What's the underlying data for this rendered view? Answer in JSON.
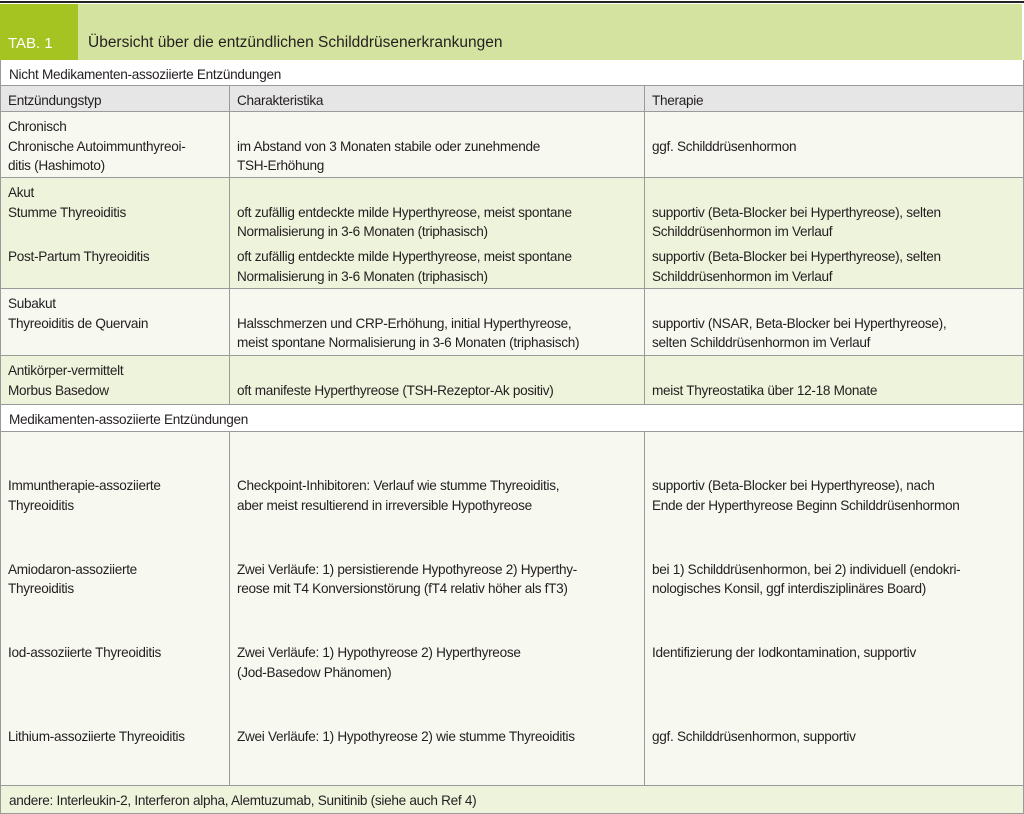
{
  "header": {
    "tab_label": "TAB. 1",
    "title": "Übersicht über die entzündlichen Schilddrüsenerkrankungen"
  },
  "colors": {
    "tab_green": "#a5c422",
    "header_green": "#d5e3a0",
    "row_green": "#eef3dc",
    "row_light": "#f7f8f0",
    "column_header_gray": "#e6e6e6"
  },
  "sections": {
    "non_drug": "Nicht Medikamenten-assoziierte Entzündungen",
    "drug": "Medikamenten-assoziierte Entzündungen"
  },
  "columns": [
    "Entzündungstyp",
    "Charakteristika",
    "Therapie"
  ],
  "groups": {
    "chronisch": {
      "label": "Chronisch",
      "type": "Chronische Autoimmunthyreoi-\nditis (Hashimoto)",
      "char": "im Abstand von 3 Monaten stabile oder zunehmende\nTSH-Erhöhung",
      "therapy": "ggf. Schilddrüsenhormon"
    },
    "akut": {
      "label": "Akut",
      "items": [
        {
          "type": "Stumme Thyreoiditis",
          "char": "oft zufällig entdeckte milde Hyperthyreose, meist spontane\nNormalisierung in 3-6 Monaten (triphasisch)",
          "therapy": "supportiv (Beta-Blocker bei Hyperthyreose), selten\nSchilddrüsenhormon im Verlauf"
        },
        {
          "type": "Post-Partum Thyreoiditis",
          "char": "oft zufällig entdeckte milde Hyperthyreose, meist spontane\nNormalisierung in 3-6 Monaten (triphasisch)",
          "therapy": "supportiv (Beta-Blocker bei Hyperthyreose), selten\nSchilddrüsenhormon im Verlauf"
        }
      ]
    },
    "subakut": {
      "label": "Subakut",
      "type": "Thyreoiditis de Quervain",
      "char": "Halsschmerzen und CRP-Erhöhung, initial Hyperthyreose,\nmeist spontane Normalisierung in 3-6 Monaten (triphasisch)",
      "therapy": "supportiv (NSAR, Beta-Blocker bei Hyperthyreose),\nselten Schilddrüsenhormon im Verlauf"
    },
    "antikoerper": {
      "label": "Antikörper-vermittelt",
      "type": "Morbus Basedow",
      "char": "oft manifeste Hyperthyreose (TSH-Rezeptor-Ak positiv)",
      "therapy": "meist Thyreostatika über 12-18 Monate"
    }
  },
  "drug_rows": [
    {
      "type": "Immuntherapie-assoziierte\nThyreoiditis",
      "char": "Checkpoint-Inhibitoren: Verlauf wie stumme Thyreoiditis,\naber meist resultierend in irreversible Hypothyreose",
      "therapy": "supportiv (Beta-Blocker bei Hyperthyreose), nach\nEnde der Hyperthyreose Beginn Schilddrüsenhormon"
    },
    {
      "type": "Amiodaron-assoziierte\nThyreoiditis",
      "char": "Zwei Verläufe: 1) persistierende Hypothyreose 2) Hyperthy-\nreose mit T4 Konversionstörung (fT4 relativ höher als fT3)",
      "therapy": "bei 1) Schilddrüsenhormon, bei 2) individuell (endokri-\nnologisches Konsil, ggf interdisziplinäres Board)"
    },
    {
      "type": "Iod-assoziierte Thyreoiditis\n ",
      "char": "Zwei Verläufe: 1) Hypothyreose 2) Hyperthyreose\n(Jod-Basedow Phänomen)",
      "therapy": "Identifizierung der Iodkontamination, supportiv\n "
    },
    {
      "type": "Lithium-assoziierte Thyreoiditis",
      "char": "Zwei Verläufe: 1) Hypothyreose 2) wie stumme Thyreoiditis",
      "therapy": "ggf. Schilddrüsenhormon, supportiv"
    }
  ],
  "footer": "andere: Interleukin-2, Interferon alpha, Alemtuzumab, Sunitinib (siehe auch Ref 4)"
}
